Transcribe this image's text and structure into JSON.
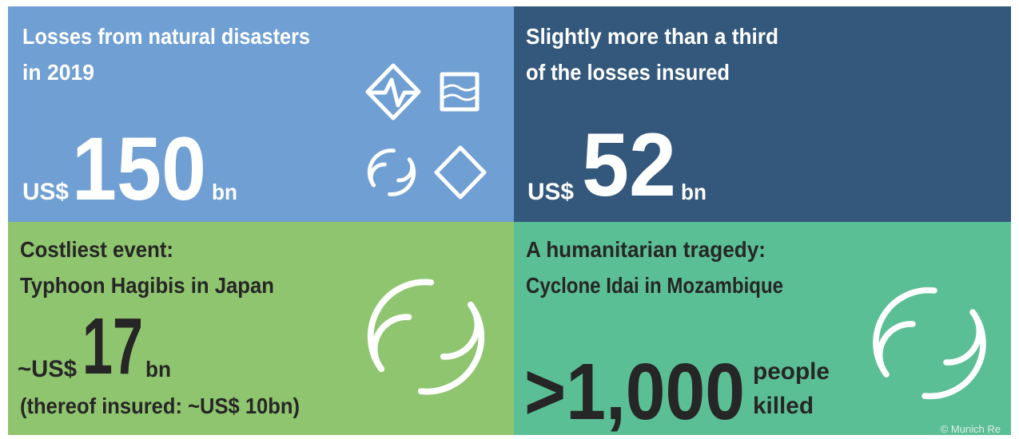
{
  "panels": [
    {
      "title": [
        "Losses from natural disasters",
        "in 2019"
      ],
      "prefix": "US$",
      "number": "150",
      "suffix": "bn"
    },
    {
      "title": [
        "Slightly more than a third",
        "of the losses insured"
      ],
      "prefix": "US$",
      "number": "52",
      "suffix": "bn"
    },
    {
      "title": [
        "Costliest event:",
        "Typhoon Hagibis in Japan"
      ],
      "prefix": "~US$",
      "number": "17",
      "suffix": "bn",
      "note": "(thereof insured: ~US$ 10bn)"
    },
    {
      "title": [
        "A humanitarian tragedy:",
        "Cyclone Idai in Mozambique"
      ],
      "number": ">1,000",
      "suffix": [
        "people",
        "killed"
      ]
    }
  ],
  "copyright": "© Munich Re"
}
